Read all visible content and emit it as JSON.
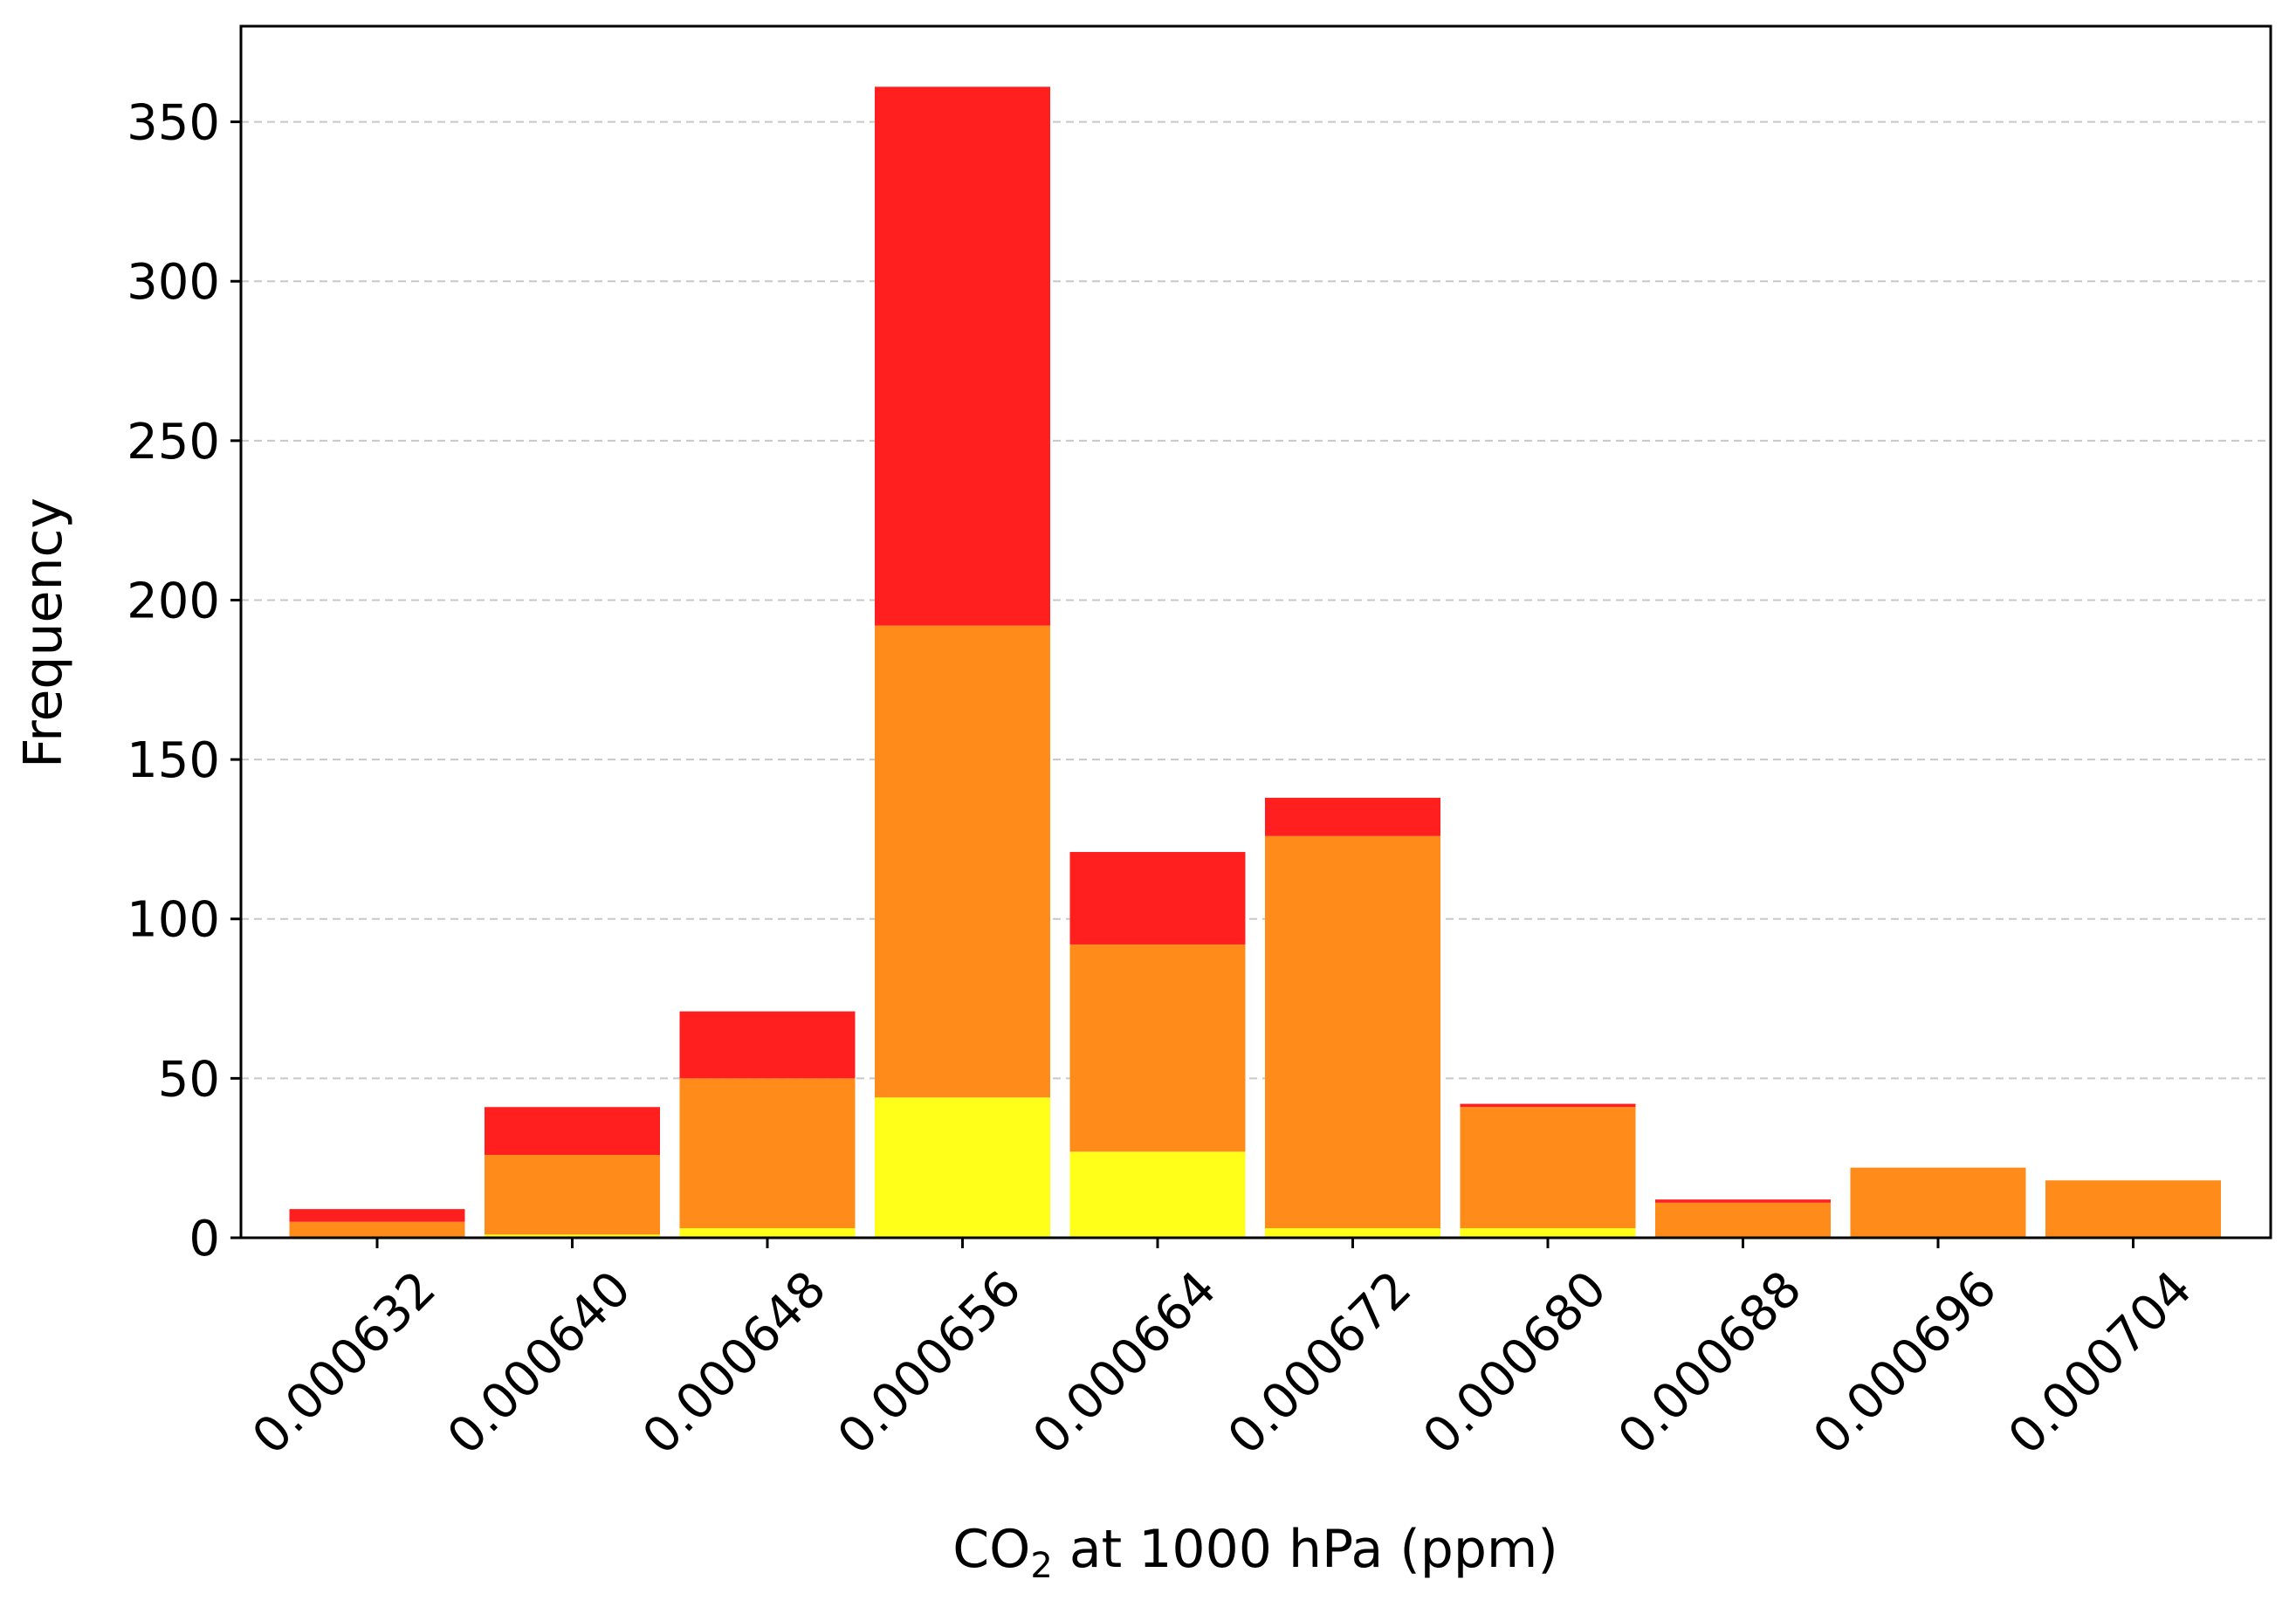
{
  "chart_data": {
    "type": "bar",
    "stacked": true,
    "title": "",
    "xlabel_main": "CO",
    "xlabel_sub": "2",
    "xlabel_rest": " at 1000 hPa (ppm)",
    "ylabel": "Frequency",
    "ylim": [
      0,
      380
    ],
    "yticks": [
      "0",
      "50",
      "100",
      "150",
      "200",
      "250",
      "300",
      "350"
    ],
    "ytick_values": [
      0,
      50,
      100,
      150,
      200,
      250,
      300,
      350
    ],
    "categories": [
      "0.000632",
      "0.000640",
      "0.000648",
      "0.000656",
      "0.000664",
      "0.000672",
      "0.000680",
      "0.000688",
      "0.000696",
      "0.000704"
    ],
    "grid": "horizontal dashed",
    "legend": "none",
    "series": [
      {
        "color": "#ffff1a",
        "values": [
          0,
          1,
          3,
          44,
          27,
          3,
          3,
          0,
          0,
          0
        ]
      },
      {
        "color": "#ff8c1a",
        "values": [
          5,
          25,
          47,
          148,
          65,
          123,
          38,
          11,
          22,
          18
        ]
      },
      {
        "color": "#ff1f1f",
        "values": [
          4,
          15,
          21,
          169,
          29,
          12,
          1,
          1,
          0,
          0
        ]
      }
    ]
  }
}
